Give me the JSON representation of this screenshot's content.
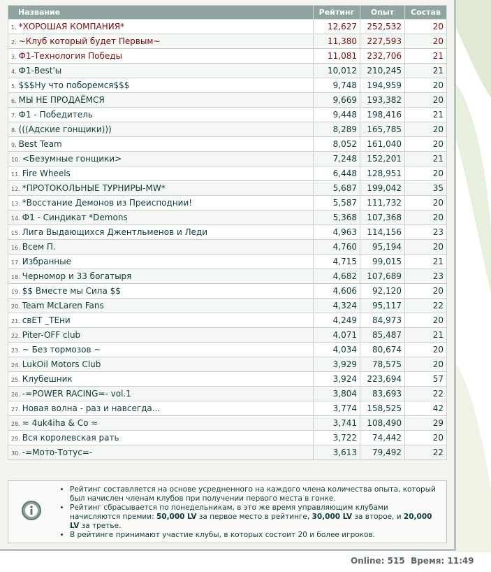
{
  "table": {
    "headers": [
      "Название",
      "Рейтинг",
      "Опыт",
      "Состав"
    ],
    "rows": [
      [
        "1.",
        "*ХОРОШАЯ КОМПАНИЯ*",
        "12,627",
        "252,532",
        "20"
      ],
      [
        "2.",
        "~Клуб который будет Первым~",
        "11,380",
        "227,593",
        "20"
      ],
      [
        "3.",
        "Ф1-Технология Победы",
        "11,081",
        "232,706",
        "21"
      ],
      [
        "4.",
        "Ф1-Best'ы",
        "10,012",
        "210,245",
        "21"
      ],
      [
        "5.",
        "$$$Ну что поборемся$$$",
        "9,748",
        "194,959",
        "20"
      ],
      [
        "6.",
        "МЫ НЕ ПРОДАЁМСЯ",
        "9,669",
        "193,382",
        "20"
      ],
      [
        "7.",
        "Ф1 - Победитель",
        "9,448",
        "198,416",
        "21"
      ],
      [
        "8.",
        "(((Адские гонщики)))",
        "8,289",
        "165,785",
        "20"
      ],
      [
        "9.",
        "Best Team",
        "8,052",
        "161,040",
        "20"
      ],
      [
        "10.",
        "<Безумные гонщики>",
        "7,248",
        "152,201",
        "21"
      ],
      [
        "11.",
        "Fire Wheels",
        "6,448",
        "128,951",
        "20"
      ],
      [
        "12.",
        "*ПРОТОКОЛЬНЫЕ ТУРНИРЫ-MW*",
        "5,687",
        "199,042",
        "35"
      ],
      [
        "13.",
        "*Восстание Демонов из Преисподнии!",
        "5,587",
        "111,732",
        "20"
      ],
      [
        "14.",
        "Ф1 - Синдикат *Demons",
        "5,368",
        "107,368",
        "20"
      ],
      [
        "15.",
        "Лига Выдающихся Джентльменов и Леди",
        "4,963",
        "114,156",
        "23"
      ],
      [
        "16.",
        "Всем П.",
        "4,760",
        "95,194",
        "20"
      ],
      [
        "17.",
        "Избранные",
        "4,715",
        "99,015",
        "21"
      ],
      [
        "18.",
        "Черномор и 33 богатыря",
        "4,682",
        "107,689",
        "23"
      ],
      [
        "19.",
        "$$ Вместе мы Сила $$",
        "4,606",
        "92,120",
        "20"
      ],
      [
        "20.",
        "Team McLaren Fans",
        "4,324",
        "95,117",
        "22"
      ],
      [
        "21.",
        "свЕТ _ТЕни",
        "4,249",
        "84,973",
        "20"
      ],
      [
        "22.",
        "Piter-OFF club",
        "4,071",
        "85,487",
        "21"
      ],
      [
        "23.",
        "~ Без тормозов ~",
        "4,034",
        "80,674",
        "20"
      ],
      [
        "24.",
        "LukOil Motors Club",
        "3,929",
        "78,575",
        "20"
      ],
      [
        "25.",
        "Клубешник",
        "3,924",
        "223,694",
        "57"
      ],
      [
        "26.",
        "-=POWER RACING=- vol.1",
        "3,804",
        "83,693",
        "22"
      ],
      [
        "27.",
        "Новая волна - раз и навсегда...",
        "3,774",
        "158,525",
        "42"
      ],
      [
        "28.",
        "≈ 4uk4iha & Co ≈",
        "3,741",
        "108,490",
        "29"
      ],
      [
        "29.",
        "Вся королевская рать",
        "3,722",
        "74,442",
        "20"
      ],
      [
        "30.",
        "-=Мото-Тотус=-",
        "3,613",
        "79,492",
        "22"
      ]
    ]
  },
  "info": {
    "items": [
      [
        "Рейтинг составляется на основе усредненного на каждого члена количества опыта, который был начислен членам клубов при получении первого места в гонке."
      ],
      [
        "Рейтинг сбрасывается по понедельникам, в это же время управляющим клубами начисляются премии: ",
        "50,000 LV",
        " за первое место в рейтинге, ",
        "30,000 LV",
        " за второе, и ",
        "20,000 LV",
        " за третье."
      ],
      [
        "В рейтинге принимают участие клубы, в которых состоит 20 и более игроков."
      ]
    ]
  },
  "footer": {
    "online_label": "Online:",
    "online": "515",
    "time_label": "Время:",
    "time": "11:49"
  }
}
